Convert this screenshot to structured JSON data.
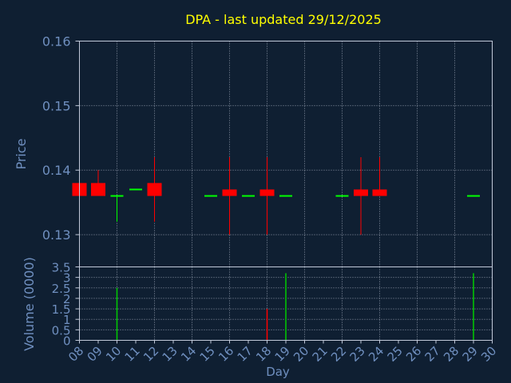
{
  "chart_data": [
    {
      "type": "candlestick",
      "title": "DPA - last updated 29/12/2025",
      "ylabel": "Price",
      "ylim": [
        0.125,
        0.16
      ],
      "yticks": [
        "0.13",
        "0.14",
        "0.15",
        "0.16"
      ],
      "ytick_values": [
        0.13,
        0.14,
        0.15,
        0.16
      ],
      "grid": true,
      "x_range": [
        8,
        30
      ],
      "candles": [
        {
          "day": 8,
          "open": 0.138,
          "close": 0.136,
          "high": 0.138,
          "low": 0.136
        },
        {
          "day": 9,
          "open": 0.138,
          "close": 0.136,
          "high": 0.14,
          "low": 0.136
        },
        {
          "day": 10,
          "open": 0.136,
          "close": 0.136,
          "high": 0.136,
          "low": 0.132
        },
        {
          "day": 11,
          "open": 0.137,
          "close": 0.137,
          "high": 0.137,
          "low": 0.137
        },
        {
          "day": 12,
          "open": 0.138,
          "close": 0.136,
          "high": 0.142,
          "low": 0.132
        },
        {
          "day": 15,
          "open": 0.136,
          "close": 0.136,
          "high": 0.136,
          "low": 0.136
        },
        {
          "day": 16,
          "open": 0.137,
          "close": 0.136,
          "high": 0.142,
          "low": 0.13
        },
        {
          "day": 17,
          "open": 0.136,
          "close": 0.136,
          "high": 0.136,
          "low": 0.136
        },
        {
          "day": 18,
          "open": 0.137,
          "close": 0.136,
          "high": 0.142,
          "low": 0.13
        },
        {
          "day": 19,
          "open": 0.136,
          "close": 0.136,
          "high": 0.136,
          "low": 0.136
        },
        {
          "day": 22,
          "open": 0.136,
          "close": 0.136,
          "high": 0.136,
          "low": 0.136
        },
        {
          "day": 23,
          "open": 0.137,
          "close": 0.136,
          "high": 0.142,
          "low": 0.13
        },
        {
          "day": 24,
          "open": 0.137,
          "close": 0.136,
          "high": 0.142,
          "low": 0.136
        },
        {
          "day": 29,
          "open": 0.136,
          "close": 0.136,
          "high": 0.136,
          "low": 0.136
        }
      ]
    },
    {
      "type": "bar",
      "ylabel": "Volume (0000)",
      "xlabel": "Day",
      "ylim": [
        0,
        3.5
      ],
      "yticks": [
        "0",
        "0.5",
        "1",
        "1.5",
        "2",
        "2.5",
        "3",
        "3.5"
      ],
      "ytick_values": [
        0,
        0.5,
        1,
        1.5,
        2,
        2.5,
        3,
        3.5
      ],
      "xticks": [
        "08",
        "09",
        "10",
        "11",
        "12",
        "13",
        "14",
        "15",
        "16",
        "17",
        "18",
        "19",
        "20",
        "21",
        "22",
        "23",
        "24",
        "25",
        "26",
        "27",
        "28",
        "29",
        "30"
      ],
      "xtick_values": [
        8,
        9,
        10,
        11,
        12,
        13,
        14,
        15,
        16,
        17,
        18,
        19,
        20,
        21,
        22,
        23,
        24,
        25,
        26,
        27,
        28,
        29,
        30
      ],
      "grid": true,
      "bars": [
        {
          "day": 10,
          "volume": 2.5,
          "color": "#00cc00"
        },
        {
          "day": 18,
          "volume": 1.5,
          "color": "#ff0000"
        },
        {
          "day": 19,
          "volume": 3.2,
          "color": "#00cc00"
        },
        {
          "day": 29,
          "volume": 3.2,
          "color": "#00cc00"
        }
      ]
    }
  ],
  "colors": {
    "background": "#0f1f32",
    "title": "#ffff00",
    "label": "#6f8fbf",
    "axis": "#c0c8d8",
    "grid": "#c0c8d8",
    "up": "#00ff00",
    "down": "#ff0000"
  }
}
